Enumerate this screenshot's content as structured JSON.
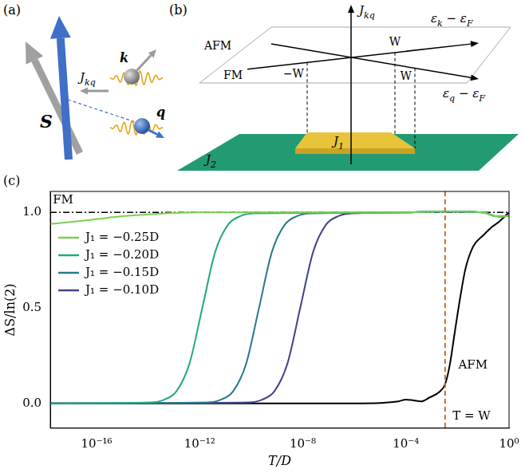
{
  "panel_a": {
    "panel_label": "(a)",
    "spin_label": "S",
    "coupling_label": [
      [
        "J",
        "kq"
      ]
    ],
    "k_label": "k",
    "q_label": "q"
  },
  "panel_b": {
    "panel_label": "(b)",
    "vertical_axis": [
      [
        "J",
        "kq"
      ]
    ],
    "k_axis": [
      [
        "ε",
        "k"
      ],
      [
        " − ε",
        "F"
      ]
    ],
    "q_axis": [
      [
        "ε",
        "q"
      ],
      [
        " − ε",
        "F"
      ]
    ],
    "upper_plane_labels": [
      "AFM",
      "FM"
    ],
    "k_axis_marks": [
      "−W",
      "W"
    ],
    "q_axis_marks": [
      "W"
    ],
    "inner_region": [
      [
        "J",
        "1"
      ]
    ],
    "outer_region": [
      [
        "J",
        "2"
      ]
    ]
  },
  "chart_data": {
    "type": "line",
    "panel_label": "(c)",
    "xlabel": "T/D",
    "ylabel": "ΔS/ln(2)",
    "log": "x",
    "xlim": [
      1.6e-18,
      1
    ],
    "xticks": [
      {
        "value": 1e-16,
        "label": "10⁻¹⁶"
      },
      {
        "value": 1e-12,
        "label": "10⁻¹²"
      },
      {
        "value": 1e-08,
        "label": "10⁻⁸"
      },
      {
        "value": 0.0001,
        "label": "10⁻⁴"
      },
      {
        "value": 1,
        "label": "10⁰"
      }
    ],
    "ylim": [
      -0.13,
      1.11
    ],
    "yticks": [
      {
        "value": 0,
        "label": "0.0"
      },
      {
        "value": 0.5,
        "label": "0.5"
      },
      {
        "value": 1,
        "label": "1.0"
      }
    ],
    "grid": false,
    "legend": "upper left",
    "series": [
      {
        "name": "J₁ = −0.25D",
        "color": "#7ad151",
        "line_style": "solid",
        "x": [
          1.6e-18,
          1e-17,
          1e-16,
          1e-15,
          1e-14,
          1e-13,
          1e-12,
          1e-08,
          0.0001,
          0.001,
          0.01,
          0.1,
          0.3,
          0.6,
          1
        ],
        "values": [
          0.94,
          0.95,
          0.965,
          0.98,
          0.99,
          0.997,
          1.0,
          1.0,
          1.0,
          1.005,
          1.005,
          1.0,
          0.98,
          0.978,
          0.985
        ]
      },
      {
        "name": "J₁ = −0.20D",
        "color": "#22a884",
        "line_style": "solid",
        "x": [
          1.6e-18,
          1.26e-14,
          3.98e-14,
          1.26e-13,
          3.98e-13,
          1.26e-12,
          3.98e-12,
          1.26e-11,
          3.98e-11,
          1.26e-10,
          0.0001,
          0.001,
          0.01,
          0.1,
          0.3,
          0.6,
          1
        ],
        "values": [
          0,
          0.005,
          0.018,
          0.064,
          0.207,
          0.5,
          0.793,
          0.936,
          0.982,
          0.995,
          1.0,
          1.005,
          1.005,
          1.0,
          0.98,
          0.978,
          0.985
        ]
      },
      {
        "name": "J₁ = −0.15D",
        "color": "#2a788e",
        "line_style": "solid",
        "x": [
          1.6e-18,
          2e-12,
          6.31e-12,
          2e-11,
          6.31e-11,
          2e-10,
          6.31e-10,
          2e-09,
          6.31e-09,
          2e-08,
          0.0001,
          0.001,
          0.01,
          0.1,
          0.3,
          0.6,
          1
        ],
        "values": [
          0,
          0.005,
          0.018,
          0.064,
          0.207,
          0.5,
          0.793,
          0.936,
          0.982,
          0.995,
          1.0,
          1.005,
          1.005,
          1.0,
          0.98,
          0.978,
          0.985
        ]
      },
      {
        "name": "J₁ = −0.10D",
        "color": "#414487",
        "line_style": "solid",
        "x": [
          1.6e-18,
          7.94e-11,
          2.51e-10,
          7.94e-10,
          2.51e-09,
          7.94e-09,
          2.51e-08,
          7.94e-08,
          2.51e-07,
          7.94e-07,
          0.0001,
          0.001,
          0.01,
          0.1,
          0.3,
          0.6,
          1
        ],
        "values": [
          0,
          0.005,
          0.018,
          0.064,
          0.207,
          0.5,
          0.793,
          0.936,
          0.982,
          0.995,
          1.0,
          1.005,
          1.005,
          1.0,
          0.98,
          0.978,
          0.985
        ]
      },
      {
        "color": "#000000",
        "line_style": "solid",
        "x": [
          1.6e-18,
          1e-06,
          1e-05,
          5e-05,
          0.0001,
          0.0002,
          0.0004,
          0.0008,
          0.002,
          0.0033,
          0.005,
          0.008,
          0.0126,
          0.02,
          0.04,
          0.1,
          0.2,
          0.4,
          0.7,
          1
        ],
        "values": [
          0,
          0,
          0.002,
          0.01,
          0.02,
          0.015,
          0.01,
          0.03,
          0.06,
          0.1,
          0.2,
          0.38,
          0.55,
          0.7,
          0.82,
          0.88,
          0.92,
          0.95,
          0.98,
          1.0
        ]
      }
    ],
    "reference_lines": [
      {
        "y": 1,
        "color": "#000000",
        "line_style": "dashdot"
      },
      {
        "x": 0.0033,
        "color": "#d2691e",
        "line_style": "dashed"
      }
    ],
    "annotations": [
      {
        "text": "FM",
        "x": 5e-18,
        "y": 1.065
      },
      {
        "text": "AFM",
        "x": 0.04,
        "y": 0.2
      },
      {
        "text": "T = W",
        "x": 0.035,
        "y": -0.07
      }
    ]
  }
}
